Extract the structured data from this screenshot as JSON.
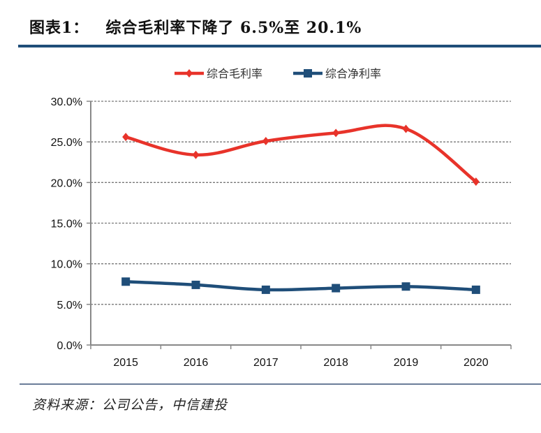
{
  "header": {
    "figure_no": "图表1：",
    "title": "综合毛利率下降了 6.5%至 20.1%"
  },
  "footer": {
    "source": "资料来源：公司公告，中信建投"
  },
  "chart_data": {
    "type": "line",
    "title": "综合毛利率下降了 6.5%至 20.1%",
    "xlabel": "",
    "ylabel": "",
    "categories": [
      "2015",
      "2016",
      "2017",
      "2018",
      "2019",
      "2020"
    ],
    "ylim": [
      0,
      30
    ],
    "yticks": [
      0,
      5,
      10,
      15,
      20,
      25,
      30
    ],
    "ytick_labels": [
      "0.0%",
      "5.0%",
      "10.0%",
      "15.0%",
      "20.0%",
      "25.0%",
      "30.0%"
    ],
    "grid": "horizontal dashed",
    "legend_position": "top-center",
    "smooth": true,
    "series": [
      {
        "name": "综合毛利率",
        "color": "#e8332a",
        "marker": "diamond",
        "values": [
          25.6,
          23.4,
          25.1,
          26.1,
          26.6,
          20.1
        ]
      },
      {
        "name": "综合净利率",
        "color": "#1f4e79",
        "marker": "square",
        "values": [
          7.8,
          7.4,
          6.8,
          7.0,
          7.2,
          6.8
        ]
      }
    ]
  }
}
